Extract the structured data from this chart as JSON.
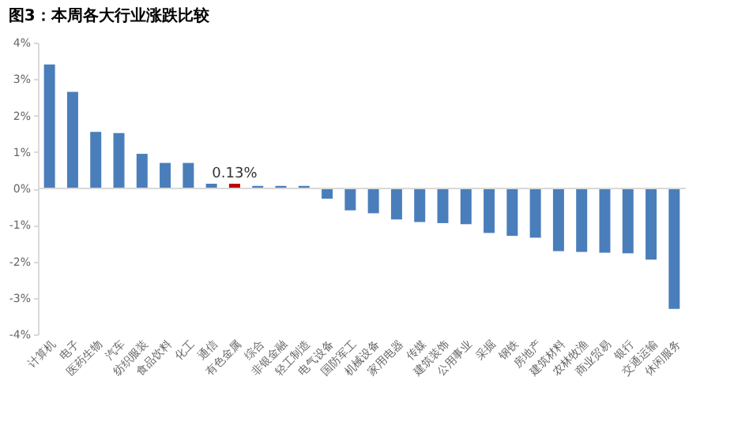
{
  "chart_data": {
    "type": "bar",
    "title": "图3：本周各大行业涨跌比较",
    "categories": [
      "计算机",
      "电子",
      "医药生物",
      "汽车",
      "纺织服装",
      "食品饮料",
      "化工",
      "通信",
      "有色金属",
      "综合",
      "非银金融",
      "轻工制造",
      "电气设备",
      "国防军工",
      "机械设备",
      "家用电器",
      "传媒",
      "建筑装饰",
      "公用事业",
      "采掘",
      "钢铁",
      "房地产",
      "建筑材料",
      "农林牧渔",
      "商业贸易",
      "银行",
      "交通运输",
      "休闲服务"
    ],
    "values": [
      3.4,
      2.65,
      1.55,
      1.52,
      0.95,
      0.7,
      0.7,
      0.13,
      0.13,
      0.07,
      0.07,
      0.07,
      -0.28,
      -0.6,
      -0.68,
      -0.85,
      -0.92,
      -0.95,
      -0.98,
      -1.22,
      -1.3,
      -1.35,
      -1.72,
      -1.74,
      -1.76,
      -1.78,
      -1.95,
      -3.3
    ],
    "colors": [
      "#4a7ebb",
      "#4a7ebb",
      "#4a7ebb",
      "#4a7ebb",
      "#4a7ebb",
      "#4a7ebb",
      "#4a7ebb",
      "#4a7ebb",
      "#c00000",
      "#4a7ebb",
      "#4a7ebb",
      "#4a7ebb",
      "#4a7ebb",
      "#4a7ebb",
      "#4a7ebb",
      "#4a7ebb",
      "#4a7ebb",
      "#4a7ebb",
      "#4a7ebb",
      "#4a7ebb",
      "#4a7ebb",
      "#4a7ebb",
      "#4a7ebb",
      "#4a7ebb",
      "#4a7ebb",
      "#4a7ebb",
      "#4a7ebb",
      "#4a7ebb"
    ],
    "value_labels": [
      null,
      null,
      null,
      null,
      null,
      null,
      null,
      null,
      "0.13%",
      null,
      null,
      null,
      null,
      null,
      null,
      null,
      null,
      null,
      null,
      null,
      null,
      null,
      null,
      null,
      null,
      null,
      null,
      null
    ],
    "ylim": [
      -4,
      4
    ],
    "yticks": [
      {
        "value": -4,
        "label": "-4%"
      },
      {
        "value": -3,
        "label": "-3%"
      },
      {
        "value": -2,
        "label": "-2%"
      },
      {
        "value": -1,
        "label": "-1%"
      },
      {
        "value": 0,
        "label": "0%"
      },
      {
        "value": 1,
        "label": "1%"
      },
      {
        "value": 2,
        "label": "2%"
      },
      {
        "value": 3,
        "label": "3%"
      },
      {
        "value": 4,
        "label": "4%"
      }
    ],
    "ref_lines": [
      {
        "axis": "y",
        "value": 0,
        "color": "#d9d9d9"
      }
    ],
    "grid": false
  }
}
